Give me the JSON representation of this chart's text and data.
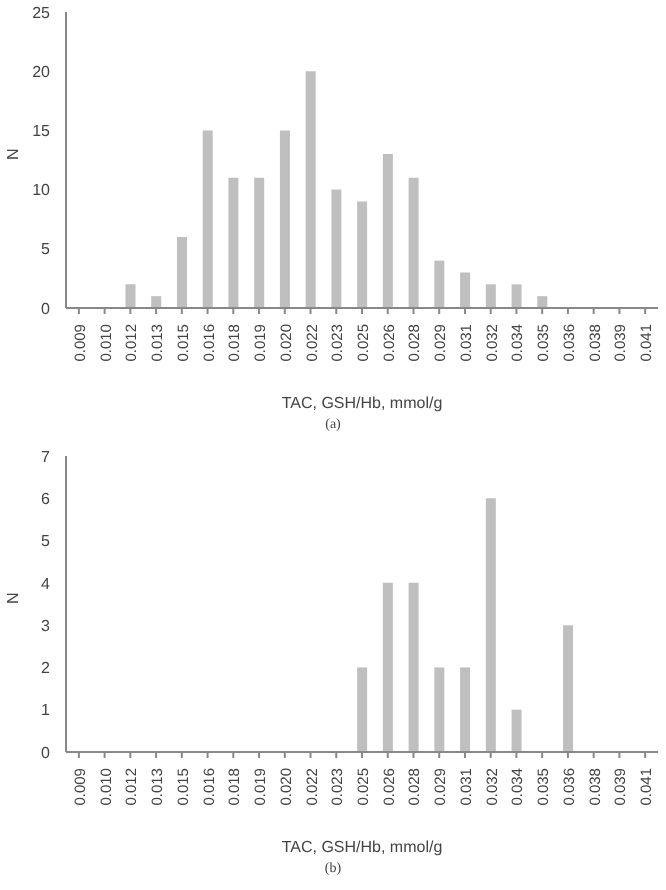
{
  "chart_data": [
    {
      "type": "bar",
      "categories": [
        "0.009",
        "0.010",
        "0.012",
        "0.013",
        "0.015",
        "0.016",
        "0.018",
        "0.019",
        "0.020",
        "0.022",
        "0.023",
        "0.025",
        "0.026",
        "0.028",
        "0.029",
        "0.031",
        "0.032",
        "0.034",
        "0.035",
        "0.036",
        "0.038",
        "0.039",
        "0.041"
      ],
      "values": [
        0,
        0,
        2,
        1,
        6,
        15,
        11,
        11,
        15,
        20,
        10,
        9,
        13,
        11,
        4,
        3,
        2,
        2,
        1,
        0,
        0,
        0,
        0
      ],
      "color": "#bfbfbf",
      "xlabel": "TAC, GSH/Hb, mmol/g",
      "ylabel": "N",
      "ylim": [
        0,
        25
      ],
      "yticks": [
        0,
        5,
        10,
        15,
        20,
        25
      ],
      "grid": false,
      "annotations": [
        "(a)"
      ]
    },
    {
      "type": "bar",
      "categories": [
        "0.009",
        "0.010",
        "0.012",
        "0.013",
        "0.015",
        "0.016",
        "0.018",
        "0.019",
        "0.020",
        "0.022",
        "0.023",
        "0.025",
        "0.026",
        "0.028",
        "0.029",
        "0.031",
        "0.032",
        "0.034",
        "0.035",
        "0.036",
        "0.038",
        "0.039",
        "0.041"
      ],
      "values": [
        0,
        0,
        0,
        0,
        0,
        0,
        0,
        0,
        0,
        0,
        0,
        2,
        4,
        4,
        2,
        2,
        6,
        1,
        0,
        3,
        0,
        0,
        0
      ],
      "color": "#bfbfbf",
      "xlabel": "TAC, GSH/Hb, mmol/g",
      "ylabel": "N",
      "ylim": [
        0,
        7
      ],
      "yticks": [
        0,
        1,
        2,
        3,
        4,
        5,
        6,
        7
      ],
      "grid": false,
      "annotations": [
        "(b)"
      ]
    }
  ]
}
